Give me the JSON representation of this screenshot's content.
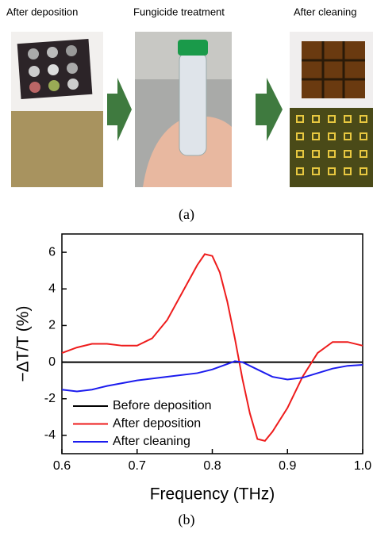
{
  "panel_a": {
    "steps": [
      "After deposition",
      "Fungicide treatment",
      "After cleaning"
    ],
    "caption": "(a)"
  },
  "chart_data": {
    "type": "line",
    "xlabel": "Frequency (THz)",
    "ylabel": "−ΔT/T (%)",
    "xlim": [
      0.6,
      1.0
    ],
    "ylim": [
      -5,
      7
    ],
    "xticks": [
      0.6,
      0.7,
      0.8,
      0.9,
      {
        "value": 1.0,
        "label": "1.0"
      }
    ],
    "yticks": [
      -4,
      -2,
      0,
      2,
      4,
      6
    ],
    "legend": "lower left",
    "series": [
      {
        "name": "Before deposition",
        "color": "#000000",
        "x": [
          0.6,
          1.0
        ],
        "values": [
          0,
          0
        ]
      },
      {
        "name": "After deposition",
        "color": "#ee1c1c",
        "x": [
          0.6,
          0.62,
          0.64,
          0.66,
          0.68,
          0.7,
          0.72,
          0.74,
          0.76,
          0.78,
          0.79,
          0.8,
          0.81,
          0.82,
          0.83,
          0.84,
          0.85,
          0.86,
          0.87,
          0.88,
          0.9,
          0.92,
          0.94,
          0.96,
          0.98,
          1.0
        ],
        "values": [
          0.5,
          0.8,
          1.0,
          1.0,
          0.9,
          0.9,
          1.3,
          2.3,
          3.8,
          5.3,
          5.9,
          5.8,
          4.9,
          3.3,
          1.3,
          -0.9,
          -2.8,
          -4.2,
          -4.3,
          -3.8,
          -2.5,
          -0.8,
          0.5,
          1.1,
          1.1,
          0.9
        ]
      },
      {
        "name": "After cleaning",
        "color": "#1c1cee",
        "x": [
          0.6,
          0.62,
          0.64,
          0.66,
          0.7,
          0.74,
          0.78,
          0.8,
          0.82,
          0.83,
          0.84,
          0.86,
          0.88,
          0.9,
          0.92,
          0.94,
          0.96,
          0.98,
          1.0
        ],
        "values": [
          -1.5,
          -1.6,
          -1.5,
          -1.3,
          -1.0,
          -0.8,
          -0.6,
          -0.4,
          -0.1,
          0.05,
          0.0,
          -0.4,
          -0.8,
          -0.95,
          -0.85,
          -0.6,
          -0.35,
          -0.2,
          -0.15
        ]
      }
    ]
  },
  "caption_b": "(b)"
}
